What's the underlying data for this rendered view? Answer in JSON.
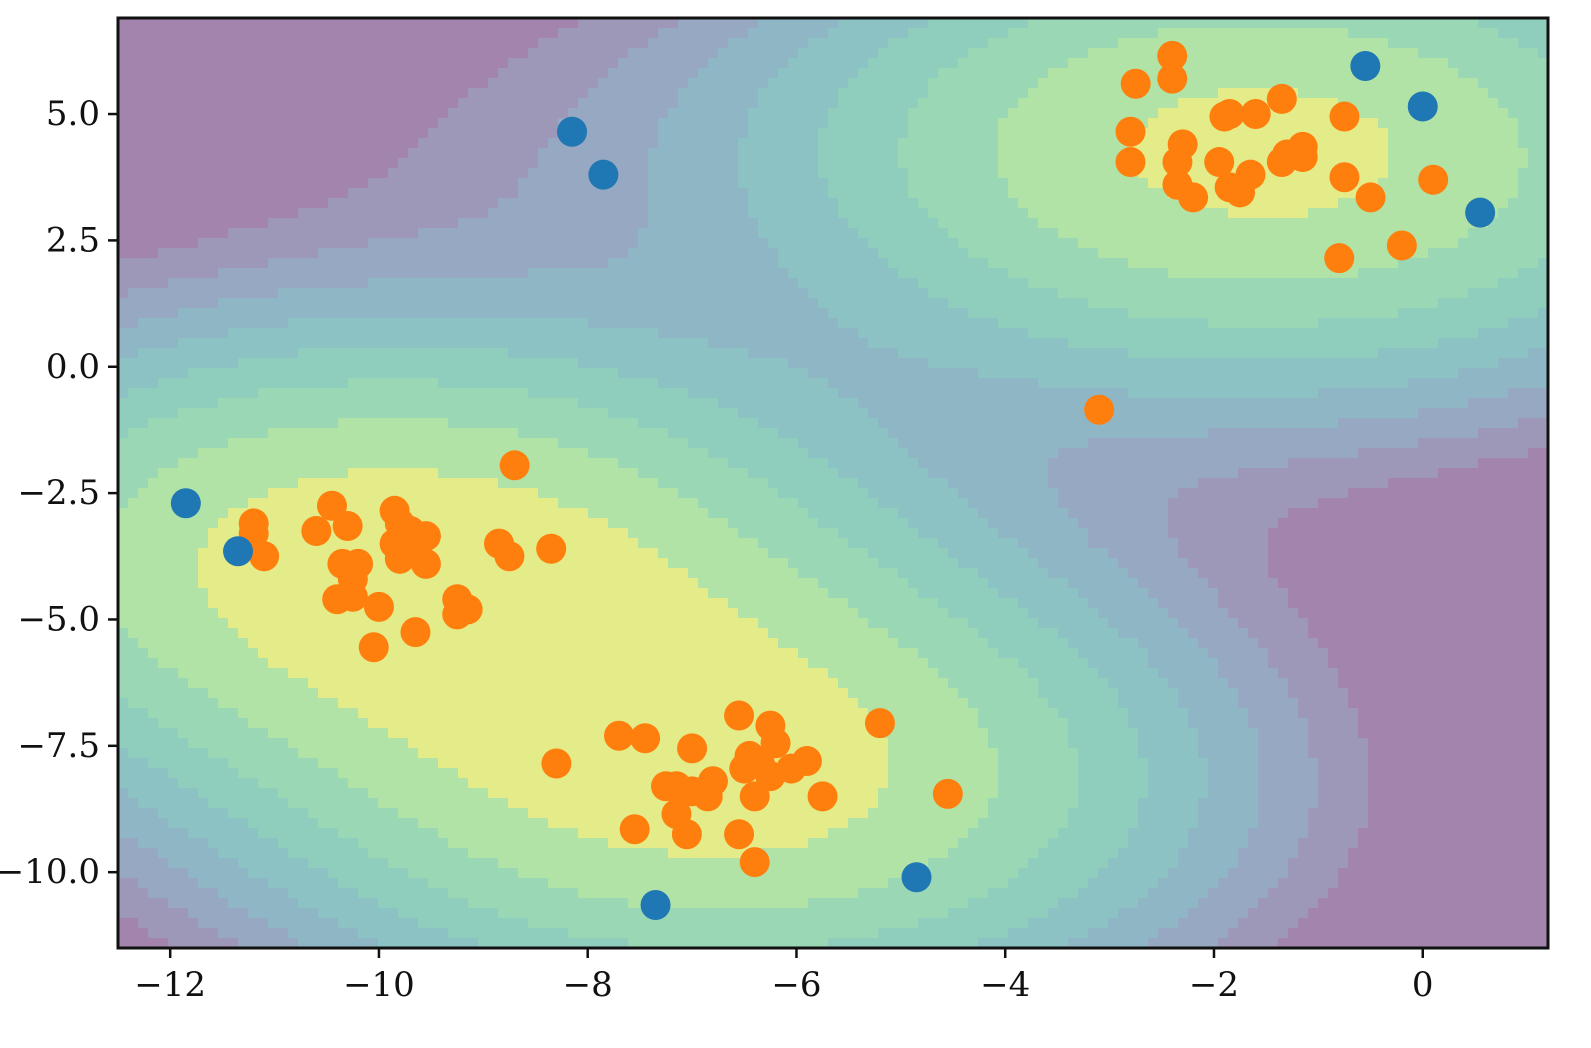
{
  "chart_data": {
    "type": "scatter",
    "title": "",
    "xlabel": "",
    "ylabel": "",
    "xlim": [
      -12.5,
      1.2
    ],
    "ylim": [
      -11.5,
      6.9
    ],
    "x_ticks": [
      -12,
      -10,
      -8,
      -6,
      -4,
      -2,
      0
    ],
    "x_tick_labels": [
      "−12",
      "−10",
      "−8",
      "−6",
      "−4",
      "−2",
      "0"
    ],
    "y_ticks": [
      5.0,
      2.5,
      0.0,
      -2.5,
      -5.0,
      -7.5,
      -10.0
    ],
    "y_tick_labels": [
      "5.0",
      "2.5",
      "0.0",
      "−2.5",
      "−5.0",
      "−7.5",
      "−10.0"
    ],
    "grid": false,
    "legend": "none",
    "background": "filled density contours (viridis, semi-transparent), highest density inside the three orange clusters",
    "series": [
      {
        "color": "#ff7f0e",
        "points": [
          [
            -11.2,
            -3.1
          ],
          [
            -11.2,
            -3.3
          ],
          [
            -11.1,
            -3.75
          ],
          [
            -10.6,
            -3.25
          ],
          [
            -10.45,
            -2.75
          ],
          [
            -10.3,
            -3.15
          ],
          [
            -10.35,
            -3.9
          ],
          [
            -10.2,
            -3.9
          ],
          [
            -10.25,
            -4.2
          ],
          [
            -10.4,
            -4.6
          ],
          [
            -10.25,
            -4.55
          ],
          [
            -10.0,
            -4.75
          ],
          [
            -10.05,
            -5.55
          ],
          [
            -9.85,
            -2.85
          ],
          [
            -9.8,
            -3.1
          ],
          [
            -9.7,
            -3.25
          ],
          [
            -9.85,
            -3.5
          ],
          [
            -9.7,
            -3.55
          ],
          [
            -9.8,
            -3.8
          ],
          [
            -9.55,
            -3.35
          ],
          [
            -9.55,
            -3.9
          ],
          [
            -9.65,
            -5.25
          ],
          [
            -9.25,
            -4.6
          ],
          [
            -9.15,
            -4.8
          ],
          [
            -9.25,
            -4.9
          ],
          [
            -8.85,
            -3.5
          ],
          [
            -8.75,
            -3.75
          ],
          [
            -8.7,
            -1.95
          ],
          [
            -8.35,
            -3.6
          ],
          [
            -8.3,
            -7.85
          ],
          [
            -7.7,
            -7.3
          ],
          [
            -7.45,
            -7.35
          ],
          [
            -7.55,
            -9.15
          ],
          [
            -7.25,
            -8.3
          ],
          [
            -7.15,
            -8.3
          ],
          [
            -7.15,
            -8.85
          ],
          [
            -7.05,
            -9.25
          ],
          [
            -7.0,
            -7.55
          ],
          [
            -7.0,
            -8.4
          ],
          [
            -6.85,
            -8.5
          ],
          [
            -6.8,
            -8.2
          ],
          [
            -6.55,
            -6.9
          ],
          [
            -6.5,
            -7.95
          ],
          [
            -6.45,
            -7.7
          ],
          [
            -6.35,
            -7.85
          ],
          [
            -6.55,
            -9.25
          ],
          [
            -6.4,
            -9.8
          ],
          [
            -6.4,
            -8.5
          ],
          [
            -6.25,
            -8.1
          ],
          [
            -6.25,
            -7.1
          ],
          [
            -6.2,
            -7.45
          ],
          [
            -6.05,
            -7.95
          ],
          [
            -5.9,
            -7.8
          ],
          [
            -5.75,
            -8.5
          ],
          [
            -5.2,
            -7.05
          ],
          [
            -4.55,
            -8.45
          ],
          [
            -3.1,
            -0.85
          ],
          [
            -2.8,
            4.05
          ],
          [
            -2.8,
            4.65
          ],
          [
            -2.75,
            5.6
          ],
          [
            -2.4,
            6.15
          ],
          [
            -2.4,
            5.7
          ],
          [
            -2.35,
            4.05
          ],
          [
            -2.3,
            4.4
          ],
          [
            -2.35,
            3.6
          ],
          [
            -2.2,
            3.35
          ],
          [
            -1.95,
            4.05
          ],
          [
            -1.9,
            4.95
          ],
          [
            -1.85,
            5.0
          ],
          [
            -1.85,
            3.55
          ],
          [
            -1.75,
            3.45
          ],
          [
            -1.65,
            3.8
          ],
          [
            -1.6,
            5.0
          ],
          [
            -1.35,
            5.3
          ],
          [
            -1.35,
            4.05
          ],
          [
            -1.3,
            4.2
          ],
          [
            -1.15,
            4.35
          ],
          [
            -1.15,
            4.15
          ],
          [
            -0.75,
            4.95
          ],
          [
            -0.75,
            3.75
          ],
          [
            -0.8,
            2.15
          ],
          [
            -0.5,
            3.35
          ],
          [
            -0.2,
            2.4
          ],
          [
            0.1,
            3.7
          ]
        ]
      },
      {
        "color": "#1f77b4",
        "points": [
          [
            -11.85,
            -2.7
          ],
          [
            -11.35,
            -3.65
          ],
          [
            -8.15,
            4.65
          ],
          [
            -7.85,
            3.8
          ],
          [
            -7.35,
            -10.65
          ],
          [
            -4.85,
            -10.1
          ],
          [
            -0.55,
            5.95
          ],
          [
            0.0,
            5.15
          ],
          [
            0.55,
            3.05
          ]
        ]
      }
    ]
  }
}
